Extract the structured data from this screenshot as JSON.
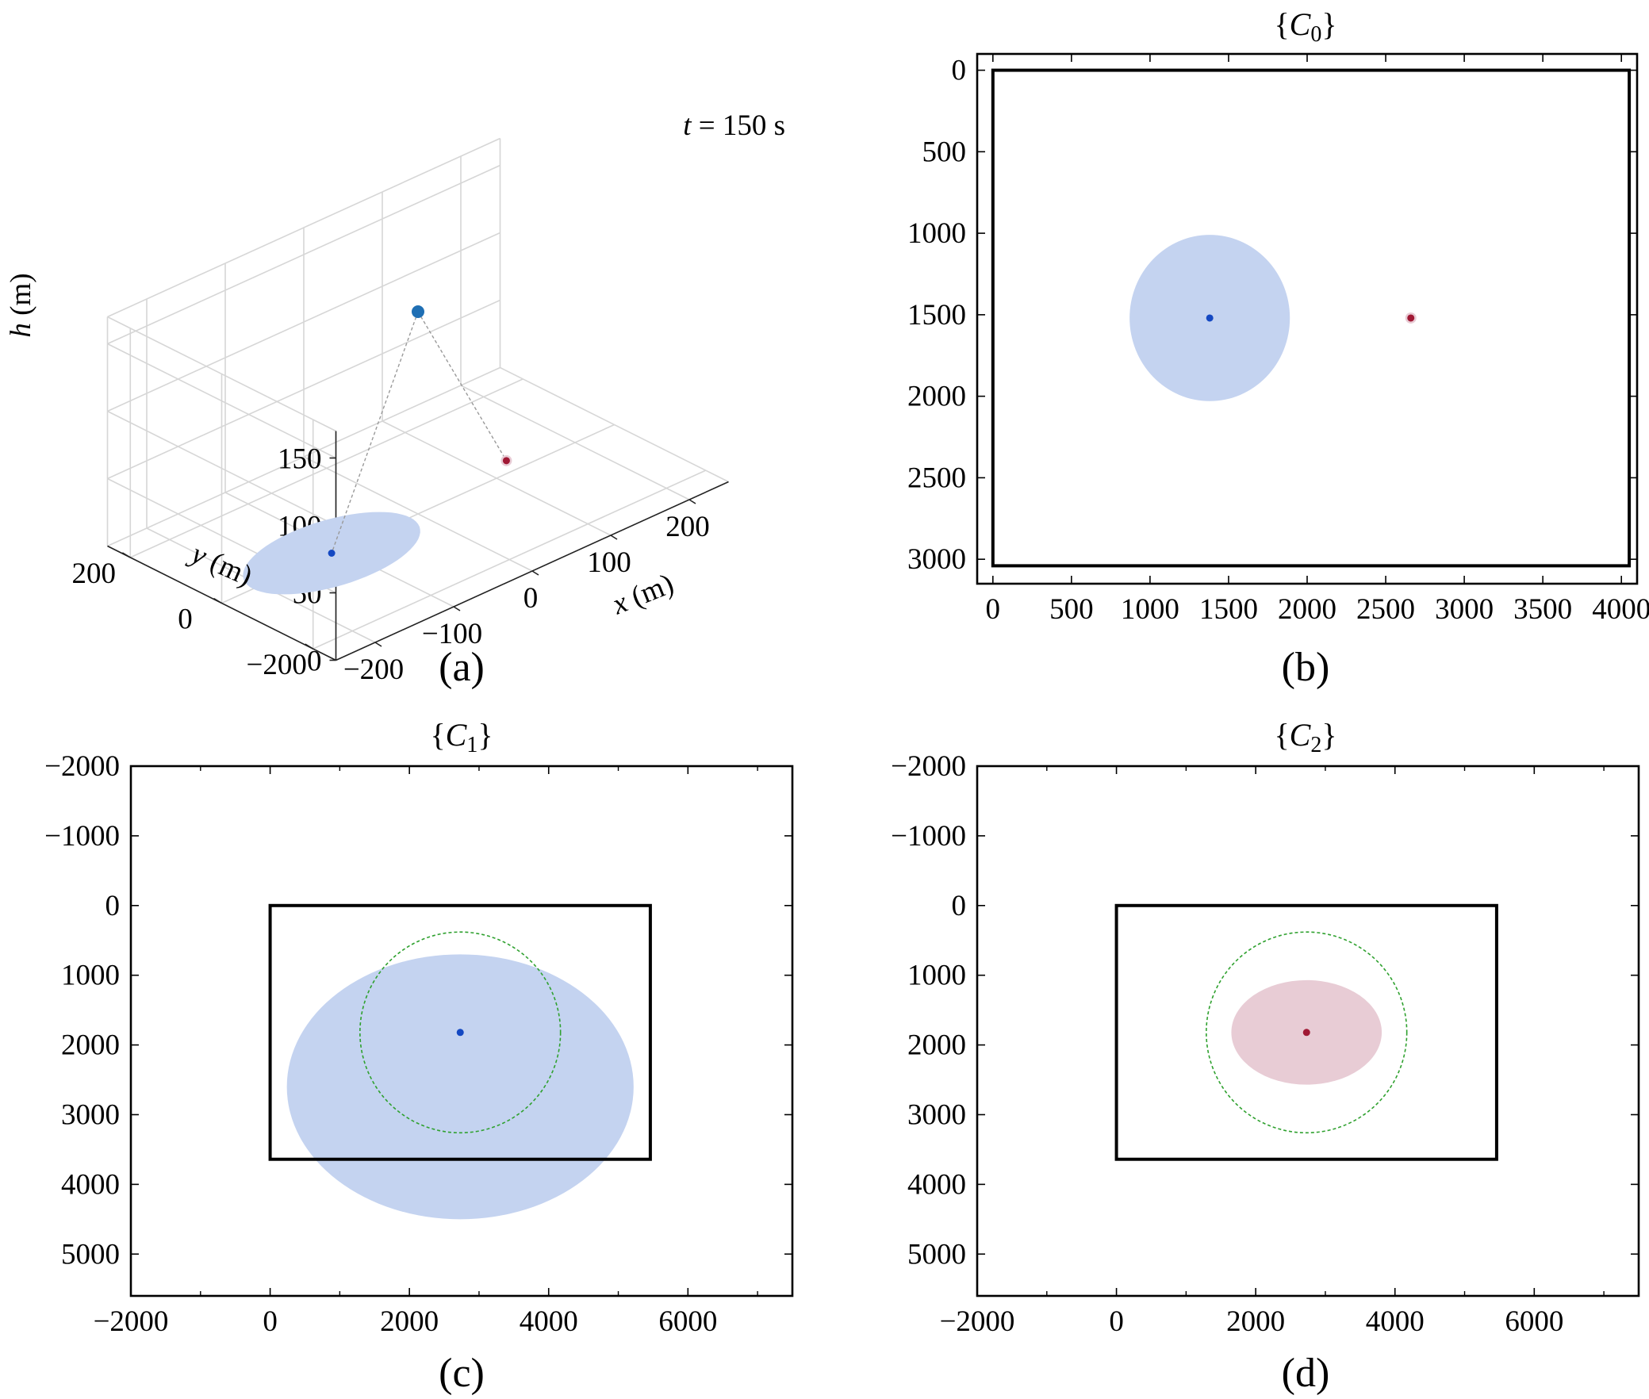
{
  "figure": {
    "captions": [
      "(a)",
      "(b)",
      "(c)",
      "(d)"
    ]
  },
  "colors": {
    "blue_fill": "#c4d3f0",
    "blue_dot": "#1448c2",
    "red_fill": "#e8ccd5",
    "red_dot": "#a01834",
    "green_dashed": "#2fa12f",
    "frame": "#000000",
    "grid": "#d6d6d6"
  },
  "chart_data": [
    {
      "id": "a",
      "type": "scatter3d",
      "annotation": "t = 150 s",
      "annotation_var": "t",
      "annotation_rest": " = 150 s",
      "xlabel": "x (m)",
      "ylabel": "y (m)",
      "zlabel": "h (m)",
      "xticks": [
        -200,
        -100,
        0,
        100,
        200
      ],
      "xtick_labels": [
        "−200",
        "−100",
        "0",
        "100",
        "200"
      ],
      "yticks": [
        -200,
        0,
        200
      ],
      "ytick_labels": [
        "−200",
        "0",
        "200"
      ],
      "zticks": [
        0,
        50,
        100,
        150
      ],
      "ztick_labels": [
        "0",
        "50",
        "100",
        "150"
      ],
      "xlim": [
        -250,
        250
      ],
      "ylim": [
        -250,
        250
      ],
      "zlim": [
        0,
        170
      ],
      "grid": true,
      "points": [
        {
          "name": "uav",
          "x": 0,
          "y": 0,
          "z": 150,
          "color": "blue_dot"
        },
        {
          "name": "target-blue",
          "x": -110,
          "y": 0,
          "z": 0,
          "color": "blue_dot"
        },
        {
          "name": "target-red",
          "x": 130,
          "y": 30,
          "z": 0,
          "color": "red_dot"
        }
      ],
      "footprint": {
        "cx": -110,
        "cy": 0,
        "rx": 100,
        "ry": 90,
        "color": "blue_fill"
      }
    },
    {
      "id": "b",
      "type": "scatter",
      "title": "{C0}",
      "title_main": "C",
      "title_sub": "0",
      "xticks": [
        0,
        500,
        1000,
        1500,
        2000,
        2500,
        3000,
        3500,
        4000
      ],
      "xtick_labels": [
        "0",
        "500",
        "1000",
        "1500",
        "2000",
        "2500",
        "3000",
        "3500",
        "4000"
      ],
      "yticks": [
        0,
        500,
        1000,
        1500,
        2000,
        2500,
        3000
      ],
      "ytick_labels": [
        "0",
        "500",
        "1000",
        "1500",
        "2000",
        "2500",
        "3000"
      ],
      "xlim": [
        -100,
        4100
      ],
      "ylim": [
        -100,
        3150
      ],
      "y_reversed": true,
      "frame_rect": {
        "x0": 0,
        "y0": 0,
        "x1": 4050,
        "y1": 3040
      },
      "ellipses": [
        {
          "cx": 1380,
          "cy": 1520,
          "rx": 510,
          "ry": 510,
          "color": "blue_fill"
        }
      ],
      "points": [
        {
          "x": 1380,
          "y": 1520,
          "color": "blue_dot"
        },
        {
          "x": 2660,
          "y": 1520,
          "color": "red_dot"
        }
      ]
    },
    {
      "id": "c",
      "type": "scatter",
      "title": "{C1}",
      "title_main": "C",
      "title_sub": "1",
      "xticks": [
        -2000,
        0,
        2000,
        4000,
        6000
      ],
      "xtick_labels": [
        "−2000",
        "0",
        "2000",
        "4000",
        "6000"
      ],
      "minor_xticks": [
        -1000,
        1000,
        3000,
        5000,
        7000
      ],
      "yticks": [
        -2000,
        -1000,
        0,
        1000,
        2000,
        3000,
        4000,
        5000
      ],
      "ytick_labels": [
        "−2000",
        "−1000",
        "0",
        "1000",
        "2000",
        "3000",
        "4000",
        "5000"
      ],
      "xlim": [
        -2000,
        7500
      ],
      "ylim": [
        -2000,
        5600
      ],
      "y_reversed": true,
      "frame_rect": {
        "x0": 0,
        "y0": 0,
        "x1": 5460,
        "y1": 3640
      },
      "ellipses": [
        {
          "cx": 2730,
          "cy": 2600,
          "rx": 2490,
          "ry": 1900,
          "color": "blue_fill"
        }
      ],
      "dashed_circles": [
        {
          "cx": 2730,
          "cy": 1820,
          "rx": 1440,
          "ry": 1440,
          "color": "green_dashed"
        }
      ],
      "points": [
        {
          "x": 2730,
          "y": 1820,
          "color": "blue_dot"
        }
      ]
    },
    {
      "id": "d",
      "type": "scatter",
      "title": "{C2}",
      "title_main": "C",
      "title_sub": "2",
      "xticks": [
        -2000,
        0,
        2000,
        4000,
        6000
      ],
      "xtick_labels": [
        "−2000",
        "0",
        "2000",
        "4000",
        "6000"
      ],
      "minor_xticks": [
        -1000,
        1000,
        3000,
        5000,
        7000
      ],
      "yticks": [
        -2000,
        -1000,
        0,
        1000,
        2000,
        3000,
        4000,
        5000
      ],
      "ytick_labels": [
        "−2000",
        "−1000",
        "0",
        "1000",
        "2000",
        "3000",
        "4000",
        "5000"
      ],
      "xlim": [
        -2000,
        7500
      ],
      "ylim": [
        -2000,
        5600
      ],
      "y_reversed": true,
      "frame_rect": {
        "x0": 0,
        "y0": 0,
        "x1": 5460,
        "y1": 3640
      },
      "ellipses": [
        {
          "cx": 2730,
          "cy": 1820,
          "rx": 1080,
          "ry": 750,
          "color": "red_fill"
        }
      ],
      "dashed_circles": [
        {
          "cx": 2730,
          "cy": 1820,
          "rx": 1440,
          "ry": 1440,
          "color": "green_dashed"
        }
      ],
      "points": [
        {
          "x": 2730,
          "y": 1820,
          "color": "red_dot"
        }
      ]
    }
  ]
}
